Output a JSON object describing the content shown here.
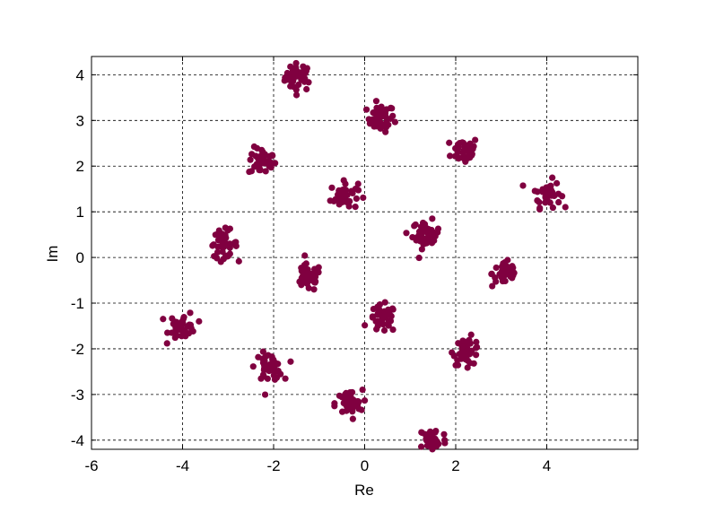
{
  "chart_data": {
    "type": "scatter",
    "title": "",
    "xlabel": "Re",
    "ylabel": "Im",
    "xlim": [
      -6,
      6
    ],
    "ylim": [
      -4.2,
      4.4
    ],
    "xticks": [
      "-6",
      "-4",
      "-2",
      "0",
      "2",
      "4"
    ],
    "yticks": [
      "4",
      "3",
      "2",
      "1",
      "0",
      "-1",
      "-2",
      "-3",
      "-4"
    ],
    "grid": true,
    "marker_color": "#800040",
    "cluster_points_each": 40,
    "cluster_spread": 0.15,
    "cluster_centers": [
      [
        -1.45,
        3.95
      ],
      [
        0.35,
        3.05
      ],
      [
        -2.25,
        2.1
      ],
      [
        2.2,
        2.35
      ],
      [
        4.0,
        1.4
      ],
      [
        -0.45,
        1.35
      ],
      [
        1.35,
        0.5
      ],
      [
        -3.1,
        0.3
      ],
      [
        3.1,
        -0.35
      ],
      [
        -1.25,
        -0.45
      ],
      [
        0.4,
        -1.35
      ],
      [
        -4.0,
        -1.5
      ],
      [
        2.25,
        -2.05
      ],
      [
        -2.1,
        -2.4
      ],
      [
        -0.35,
        -3.2
      ],
      [
        1.5,
        -4.0
      ]
    ]
  }
}
